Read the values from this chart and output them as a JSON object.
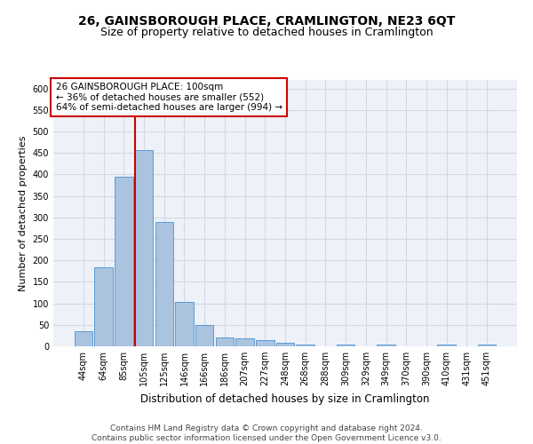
{
  "title1": "26, GAINSBOROUGH PLACE, CRAMLINGTON, NE23 6QT",
  "title2": "Size of property relative to detached houses in Cramlington",
  "xlabel": "Distribution of detached houses by size in Cramlington",
  "ylabel": "Number of detached properties",
  "categories": [
    "44sqm",
    "64sqm",
    "85sqm",
    "105sqm",
    "125sqm",
    "146sqm",
    "166sqm",
    "186sqm",
    "207sqm",
    "227sqm",
    "248sqm",
    "268sqm",
    "288sqm",
    "309sqm",
    "329sqm",
    "349sqm",
    "370sqm",
    "390sqm",
    "410sqm",
    "431sqm",
    "451sqm"
  ],
  "values": [
    35,
    183,
    395,
    457,
    289,
    103,
    49,
    21,
    19,
    14,
    8,
    4,
    0,
    5,
    0,
    5,
    0,
    0,
    4,
    0,
    4
  ],
  "bar_color": "#aac4e0",
  "bar_edge_color": "#5b9bd5",
  "grid_color": "#d0d8e8",
  "background_color": "#eef2f8",
  "vline_color": "#cc0000",
  "vline_x": 2.55,
  "annotation_text": "26 GAINSBOROUGH PLACE: 100sqm\n← 36% of detached houses are smaller (552)\n64% of semi-detached houses are larger (994) →",
  "annotation_box_color": "#cc0000",
  "ylim": [
    0,
    620
  ],
  "yticks": [
    0,
    50,
    100,
    150,
    200,
    250,
    300,
    350,
    400,
    450,
    500,
    550,
    600
  ],
  "footnote": "Contains HM Land Registry data © Crown copyright and database right 2024.\nContains public sector information licensed under the Open Government Licence v3.0.",
  "title1_fontsize": 10,
  "title2_fontsize": 9,
  "xlabel_fontsize": 8.5,
  "ylabel_fontsize": 8,
  "tick_fontsize": 7,
  "annotation_fontsize": 7.5,
  "footnote_fontsize": 6.5
}
